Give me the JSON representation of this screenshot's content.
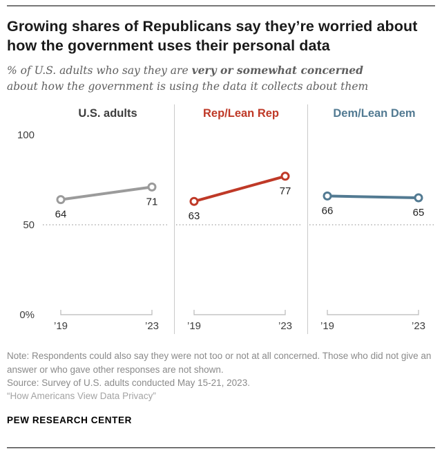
{
  "header": {
    "title": "Growing shares of Republicans say they’re worried about how the government uses their personal data",
    "subtitle_prefix": "% of U.S. adults who say they are ",
    "subtitle_bold": "very or somewhat concerned",
    "subtitle_suffix": " about how the government is using the data it collects about them"
  },
  "chart_data": {
    "type": "line",
    "x": [
      "’19",
      "’23"
    ],
    "ylim": [
      0,
      100
    ],
    "yticks": [
      {
        "value": 100,
        "label": "100"
      },
      {
        "value": 50,
        "label": "50"
      },
      {
        "value": 0,
        "label": "0%"
      }
    ],
    "reference_line": 50,
    "grid": "dotted reference line at 50 only",
    "legend_position": "none",
    "panels": [
      {
        "title": "U.S. adults",
        "title_color": "#3d3d3d",
        "color": "#9b9b9b",
        "values": [
          64,
          71
        ],
        "show_yaxis": true
      },
      {
        "title": "Rep/Lean Rep",
        "title_color": "#bf3927",
        "color": "#bf3927",
        "values": [
          63,
          77
        ],
        "show_yaxis": false
      },
      {
        "title": "Dem/Lean Dem",
        "title_color": "#527a92",
        "color": "#527a92",
        "values": [
          66,
          65
        ],
        "show_yaxis": false
      }
    ]
  },
  "footer": {
    "note": "Note: Respondents could also say they were not too or not at all concerned. Those who did not give an answer or who gave other responses are not shown.",
    "source": "Source: Survey of U.S. adults conducted May 15-21, 2023.",
    "quote": "“How Americans View Data Privacy”",
    "brand": "PEW RESEARCH CENTER"
  }
}
